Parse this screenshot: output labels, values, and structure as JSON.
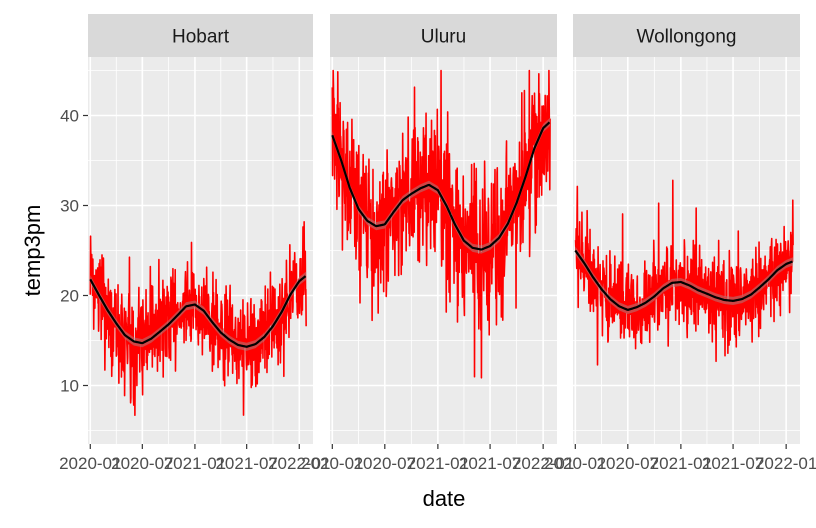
{
  "chart_data": {
    "type": "line",
    "xlabel": "date",
    "ylabel": "temp3pm",
    "ylim": [
      3.5,
      46.5
    ],
    "yticks": [
      10,
      20,
      30,
      40
    ],
    "x_range": [
      "2019-12-24",
      "2022-02-18"
    ],
    "x_ticks": [
      {
        "date": "2020-01-01",
        "label": "2020-01"
      },
      {
        "date": "2020-07-01",
        "label": "2020-07"
      },
      {
        "date": "2021-01-01",
        "label": "2021-01"
      },
      {
        "date": "2021-07-01",
        "label": "2021-07"
      },
      {
        "date": "2022-01-01",
        "label": "2022-01"
      }
    ],
    "grid": true,
    "colors": {
      "series": "#ff0000",
      "smooth": "#000000",
      "band": "#999999"
    },
    "panels": [
      {
        "strip": "Hobart",
        "smooth": [
          [
            "2020-01-01",
            21.8
          ],
          [
            "2020-02-01",
            20.0
          ],
          [
            "2020-03-01",
            18.4
          ],
          [
            "2020-04-01",
            16.9
          ],
          [
            "2020-05-01",
            15.6
          ],
          [
            "2020-06-01",
            14.9
          ],
          [
            "2020-07-01",
            14.7
          ],
          [
            "2020-08-01",
            15.2
          ],
          [
            "2020-09-01",
            16.0
          ],
          [
            "2020-10-01",
            16.8
          ],
          [
            "2020-11-01",
            17.8
          ],
          [
            "2020-12-01",
            18.8
          ],
          [
            "2021-01-01",
            19.0
          ],
          [
            "2021-02-01",
            18.3
          ],
          [
            "2021-03-01",
            17.1
          ],
          [
            "2021-04-01",
            15.9
          ],
          [
            "2021-05-01",
            15.1
          ],
          [
            "2021-06-01",
            14.5
          ],
          [
            "2021-07-01",
            14.3
          ],
          [
            "2021-08-01",
            14.6
          ],
          [
            "2021-09-01",
            15.4
          ],
          [
            "2021-10-01",
            16.6
          ],
          [
            "2021-11-01",
            18.2
          ],
          [
            "2021-12-01",
            20.1
          ],
          [
            "2022-01-01",
            21.6
          ],
          [
            "2022-01-25",
            22.2
          ]
        ]
      },
      {
        "strip": "Uluru",
        "smooth": [
          [
            "2020-01-01",
            37.8
          ],
          [
            "2020-02-01",
            35.0
          ],
          [
            "2020-03-01",
            32.0
          ],
          [
            "2020-04-01",
            29.6
          ],
          [
            "2020-05-01",
            28.3
          ],
          [
            "2020-06-01",
            27.7
          ],
          [
            "2020-07-01",
            27.9
          ],
          [
            "2020-08-01",
            29.3
          ],
          [
            "2020-09-01",
            30.6
          ],
          [
            "2020-10-01",
            31.3
          ],
          [
            "2020-11-01",
            31.9
          ],
          [
            "2020-12-01",
            32.3
          ],
          [
            "2021-01-01",
            31.7
          ],
          [
            "2021-02-01",
            29.9
          ],
          [
            "2021-03-01",
            27.9
          ],
          [
            "2021-04-01",
            26.1
          ],
          [
            "2021-05-01",
            25.3
          ],
          [
            "2021-06-01",
            25.1
          ],
          [
            "2021-07-01",
            25.5
          ],
          [
            "2021-08-01",
            26.4
          ],
          [
            "2021-09-01",
            28.0
          ],
          [
            "2021-10-01",
            30.3
          ],
          [
            "2021-11-01",
            33.2
          ],
          [
            "2021-12-01",
            36.3
          ],
          [
            "2022-01-01",
            38.6
          ],
          [
            "2022-01-25",
            39.3
          ]
        ]
      },
      {
        "strip": "Wollongong",
        "smooth": [
          [
            "2020-01-01",
            25.0
          ],
          [
            "2020-02-01",
            23.6
          ],
          [
            "2020-03-01",
            22.1
          ],
          [
            "2020-04-01",
            20.7
          ],
          [
            "2020-05-01",
            19.6
          ],
          [
            "2020-06-01",
            18.8
          ],
          [
            "2020-07-01",
            18.4
          ],
          [
            "2020-08-01",
            18.7
          ],
          [
            "2020-09-01",
            19.2
          ],
          [
            "2020-10-01",
            19.9
          ],
          [
            "2020-11-01",
            20.8
          ],
          [
            "2020-12-01",
            21.4
          ],
          [
            "2021-01-01",
            21.5
          ],
          [
            "2021-02-01",
            21.1
          ],
          [
            "2021-03-01",
            20.6
          ],
          [
            "2021-04-01",
            20.2
          ],
          [
            "2021-05-01",
            19.8
          ],
          [
            "2021-06-01",
            19.5
          ],
          [
            "2021-07-01",
            19.4
          ],
          [
            "2021-08-01",
            19.6
          ],
          [
            "2021-09-01",
            20.1
          ],
          [
            "2021-10-01",
            20.9
          ],
          [
            "2021-11-01",
            21.8
          ],
          [
            "2021-12-01",
            22.8
          ],
          [
            "2022-01-01",
            23.5
          ],
          [
            "2022-01-25",
            23.8
          ]
        ]
      }
    ]
  }
}
